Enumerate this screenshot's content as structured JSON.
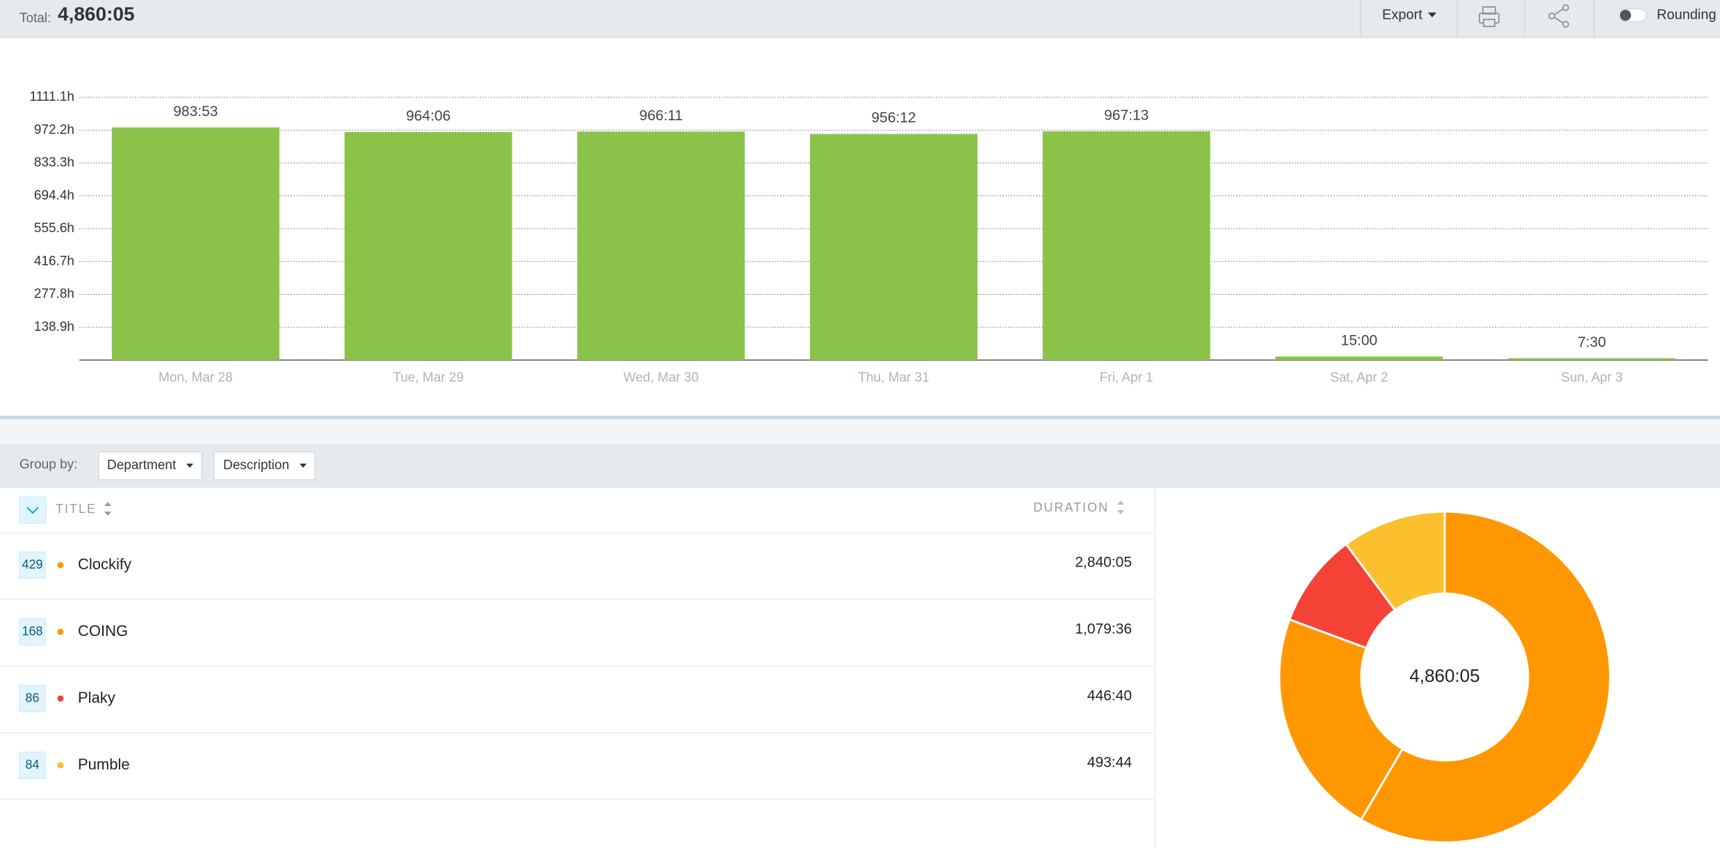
{
  "header": {
    "total_label": "Total:",
    "total": "4,860:05",
    "export": "Export",
    "rounding": "Rounding"
  },
  "chart_data": [
    {
      "type": "bar",
      "categories": [
        "Mon, Mar 28",
        "Tue, Mar 29",
        "Wed, Mar 30",
        "Thu, Mar 31",
        "Fri, Apr 1",
        "Sat, Apr 2",
        "Sun, Apr 3"
      ],
      "values": [
        983.883,
        964.1,
        966.183,
        956.2,
        967.217,
        15,
        7.5
      ],
      "value_labels": [
        "983:53",
        "964:06",
        "966:11",
        "956:12",
        "967:13",
        "15:00",
        "7:30"
      ],
      "color": "#8bc34a",
      "ylim": [
        0,
        1111.1
      ],
      "yticks": [
        {
          "value": 138.9,
          "label": "138.9h"
        },
        {
          "value": 277.8,
          "label": "277.8h"
        },
        {
          "value": 416.7,
          "label": "416.7h"
        },
        {
          "value": 555.6,
          "label": "555.6h"
        },
        {
          "value": 694.4,
          "label": "694.4h"
        },
        {
          "value": 833.3,
          "label": "833.3h"
        },
        {
          "value": 972.2,
          "label": "972.2h"
        },
        {
          "value": 1111.1,
          "label": "1111.1h"
        }
      ],
      "grid": true
    },
    {
      "type": "pie",
      "values": [
        2840.083,
        1079.6,
        446.667,
        493.733
      ],
      "colors": [
        "#ff9800",
        "#ff9800",
        "#f44336",
        "#fbc02d"
      ],
      "hole": true
    }
  ],
  "group_by": {
    "label": "Group by:",
    "options": [
      "Department",
      "Description"
    ]
  },
  "table": {
    "columns": [
      "TITLE",
      "DURATION"
    ],
    "rows": [
      {
        "count": 429,
        "title": "Clockify",
        "duration": "2,840:05"
      },
      {
        "count": 168,
        "title": "COING",
        "duration": "1,079:36"
      },
      {
        "count": 86,
        "title": "Plaky",
        "duration": "446:40"
      },
      {
        "count": 84,
        "title": "Pumble",
        "duration": "493:44"
      }
    ]
  }
}
